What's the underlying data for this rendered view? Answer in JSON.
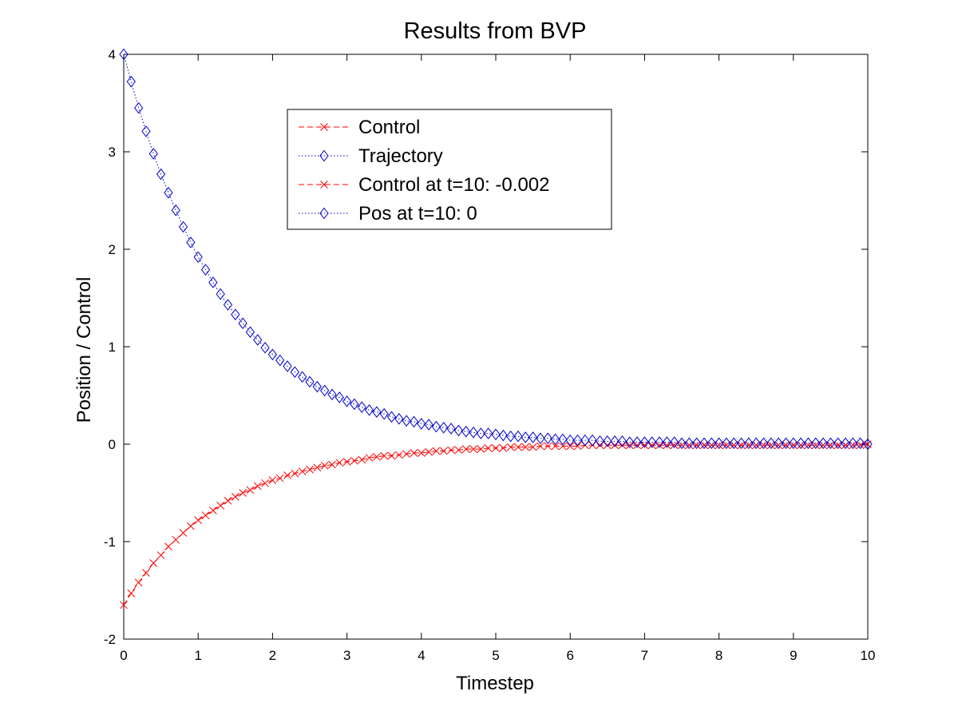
{
  "chart_data": {
    "type": "line",
    "title": "Results from BVP",
    "xlabel": "Timestep",
    "ylabel": "Position / Control",
    "xlim": [
      0,
      10
    ],
    "ylim": [
      -2,
      4
    ],
    "xticks": [
      0,
      1,
      2,
      3,
      4,
      5,
      6,
      7,
      8,
      9,
      10
    ],
    "yticks": [
      -2,
      -1,
      0,
      1,
      2,
      3,
      4
    ],
    "grid": false,
    "legend_position": "top-center",
    "series": [
      {
        "name": "Control",
        "color": "#ff0000",
        "line_style": "dashed",
        "marker": "x",
        "x_start": 0,
        "x_step": 0.1,
        "values": [
          -1.65,
          -1.53,
          -1.42,
          -1.32,
          -1.22,
          -1.14,
          -1.05,
          -0.98,
          -0.91,
          -0.84,
          -0.78,
          -0.73,
          -0.68,
          -0.63,
          -0.58,
          -0.54,
          -0.5,
          -0.47,
          -0.43,
          -0.4,
          -0.37,
          -0.35,
          -0.32,
          -0.3,
          -0.28,
          -0.26,
          -0.24,
          -0.22,
          -0.21,
          -0.19,
          -0.18,
          -0.17,
          -0.16,
          -0.14,
          -0.13,
          -0.12,
          -0.12,
          -0.11,
          -0.1,
          -0.09,
          -0.09,
          -0.08,
          -0.07,
          -0.07,
          -0.06,
          -0.06,
          -0.05,
          -0.05,
          -0.05,
          -0.04,
          -0.04,
          -0.04,
          -0.03,
          -0.03,
          -0.03,
          -0.03,
          -0.02,
          -0.02,
          -0.02,
          -0.02,
          -0.02,
          -0.02,
          -0.01,
          -0.01,
          -0.01,
          -0.01,
          -0.01,
          -0.01,
          -0.01,
          -0.01,
          -0.01,
          -0.01,
          -0.01,
          -0.01,
          -0.01,
          -0.01,
          -0.01,
          -0.01,
          -0.01,
          -0.01,
          -0.01,
          -0.01,
          -0.01,
          -0.01,
          -0.01,
          -0.01,
          -0.01,
          -0.01,
          -0.01,
          -0.01,
          -0.01,
          -0.01,
          -0.01,
          -0.01,
          -0.01,
          -0.01,
          -0.01,
          -0.01,
          -0.01,
          -0.01,
          -0.002
        ]
      },
      {
        "name": "Trajectory",
        "color": "#0000cc",
        "line_style": "dotted",
        "marker": "diamond",
        "x_start": 0,
        "x_step": 0.1,
        "values": [
          4.0,
          3.72,
          3.45,
          3.21,
          2.98,
          2.77,
          2.58,
          2.4,
          2.23,
          2.07,
          1.92,
          1.79,
          1.66,
          1.54,
          1.43,
          1.33,
          1.24,
          1.15,
          1.07,
          0.99,
          0.92,
          0.86,
          0.8,
          0.74,
          0.69,
          0.64,
          0.59,
          0.55,
          0.51,
          0.48,
          0.44,
          0.41,
          0.38,
          0.35,
          0.33,
          0.31,
          0.28,
          0.26,
          0.24,
          0.23,
          0.21,
          0.2,
          0.18,
          0.17,
          0.16,
          0.14,
          0.13,
          0.12,
          0.11,
          0.11,
          0.1,
          0.09,
          0.08,
          0.08,
          0.07,
          0.07,
          0.06,
          0.06,
          0.05,
          0.05,
          0.04,
          0.04,
          0.04,
          0.04,
          0.03,
          0.03,
          0.03,
          0.03,
          0.02,
          0.02,
          0.02,
          0.02,
          0.02,
          0.02,
          0.02,
          0.01,
          0.01,
          0.01,
          0.01,
          0.01,
          0.01,
          0.01,
          0.01,
          0.01,
          0.01,
          0.01,
          0.01,
          0.01,
          0.01,
          0.01,
          0.01,
          0.01,
          0.01,
          0.01,
          0.01,
          0.01,
          0.01,
          0.01,
          0.01,
          0.01,
          0.0
        ]
      }
    ],
    "legend": [
      {
        "label": "Control",
        "color": "#ff0000",
        "line_style": "dashed",
        "marker": "x"
      },
      {
        "label": "Trajectory",
        "color": "#0000cc",
        "line_style": "dotted",
        "marker": "diamond"
      },
      {
        "label": "Control at t=10:  -0.002",
        "color": "#ff0000",
        "line_style": "dashed",
        "marker": "x"
      },
      {
        "label": "Pos at t=10:  0",
        "color": "#0000cc",
        "line_style": "dotted",
        "marker": "diamond"
      }
    ]
  }
}
